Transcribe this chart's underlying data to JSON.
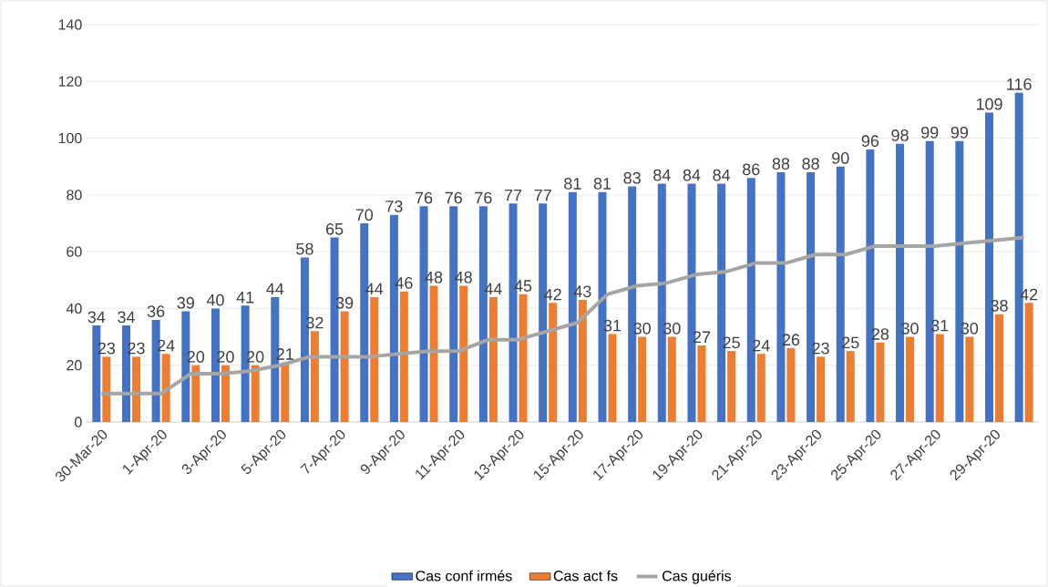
{
  "chart_data": {
    "type": "bar",
    "categories": [
      "30-Mar-20",
      null,
      "1-Apr-20",
      null,
      "3-Apr-20",
      null,
      "5-Apr-20",
      null,
      "7-Apr-20",
      null,
      "9-Apr-20",
      null,
      "11-Apr-20",
      null,
      "13-Apr-20",
      null,
      "15-Apr-20",
      null,
      "17-Apr-20",
      null,
      "19-Apr-20",
      null,
      "21-Apr-20",
      null,
      "23-Apr-20",
      null,
      "25-Apr-20",
      null,
      "27-Apr-20",
      null,
      "29-Apr-20",
      null
    ],
    "series": [
      {
        "name": "Cas conf irmés",
        "color": "#4472c4",
        "values": [
          34,
          34,
          36,
          39,
          40,
          41,
          44,
          58,
          65,
          70,
          73,
          76,
          76,
          76,
          77,
          77,
          81,
          81,
          83,
          84,
          84,
          84,
          86,
          88,
          88,
          90,
          96,
          98,
          99,
          99,
          109,
          116
        ],
        "value_labels": [
          "34",
          "34",
          "36",
          "39",
          "40",
          "41",
          "44",
          "58",
          "65",
          "70",
          "73",
          "76",
          "76",
          "76",
          "77",
          "77",
          "81",
          "81",
          "83",
          "84",
          "84",
          "84",
          "86",
          "88",
          "88",
          "90",
          "96",
          "98",
          "99",
          "99",
          "109",
          "116"
        ]
      },
      {
        "name": "Cas act fs",
        "color": "#ed7d31",
        "values": [
          23,
          23,
          24,
          20,
          20,
          20,
          21,
          32,
          39,
          44,
          46,
          48,
          48,
          44,
          45,
          42,
          43,
          31,
          30,
          30,
          27,
          25,
          24,
          26,
          23,
          25,
          28,
          30,
          31,
          30,
          38,
          42
        ],
        "value_labels": [
          "23",
          "23",
          "24",
          "20",
          "20",
          "20",
          "21",
          "32",
          "39",
          "44",
          "46",
          "48",
          "48",
          "44",
          "45",
          "42",
          "43",
          "31",
          "30",
          "30",
          "27",
          "25",
          "24",
          "26",
          "23",
          "25",
          "28",
          "30",
          "31",
          "30",
          "38",
          "42"
        ]
      },
      {
        "name": "Cas guéris",
        "type": "line",
        "color": "#a5a5a5",
        "values": [
          10,
          10,
          10,
          17,
          17,
          18,
          20,
          23,
          23,
          23,
          24,
          25,
          25,
          29,
          29,
          32,
          35,
          45,
          48,
          49,
          52,
          53,
          56,
          56,
          59,
          59,
          62,
          62,
          62,
          63,
          64,
          65
        ]
      }
    ],
    "ylim": [
      0,
      140
    ],
    "yticks": [
      0,
      20,
      40,
      60,
      80,
      100,
      120,
      140
    ],
    "grid": "y",
    "legend": "bottom"
  }
}
